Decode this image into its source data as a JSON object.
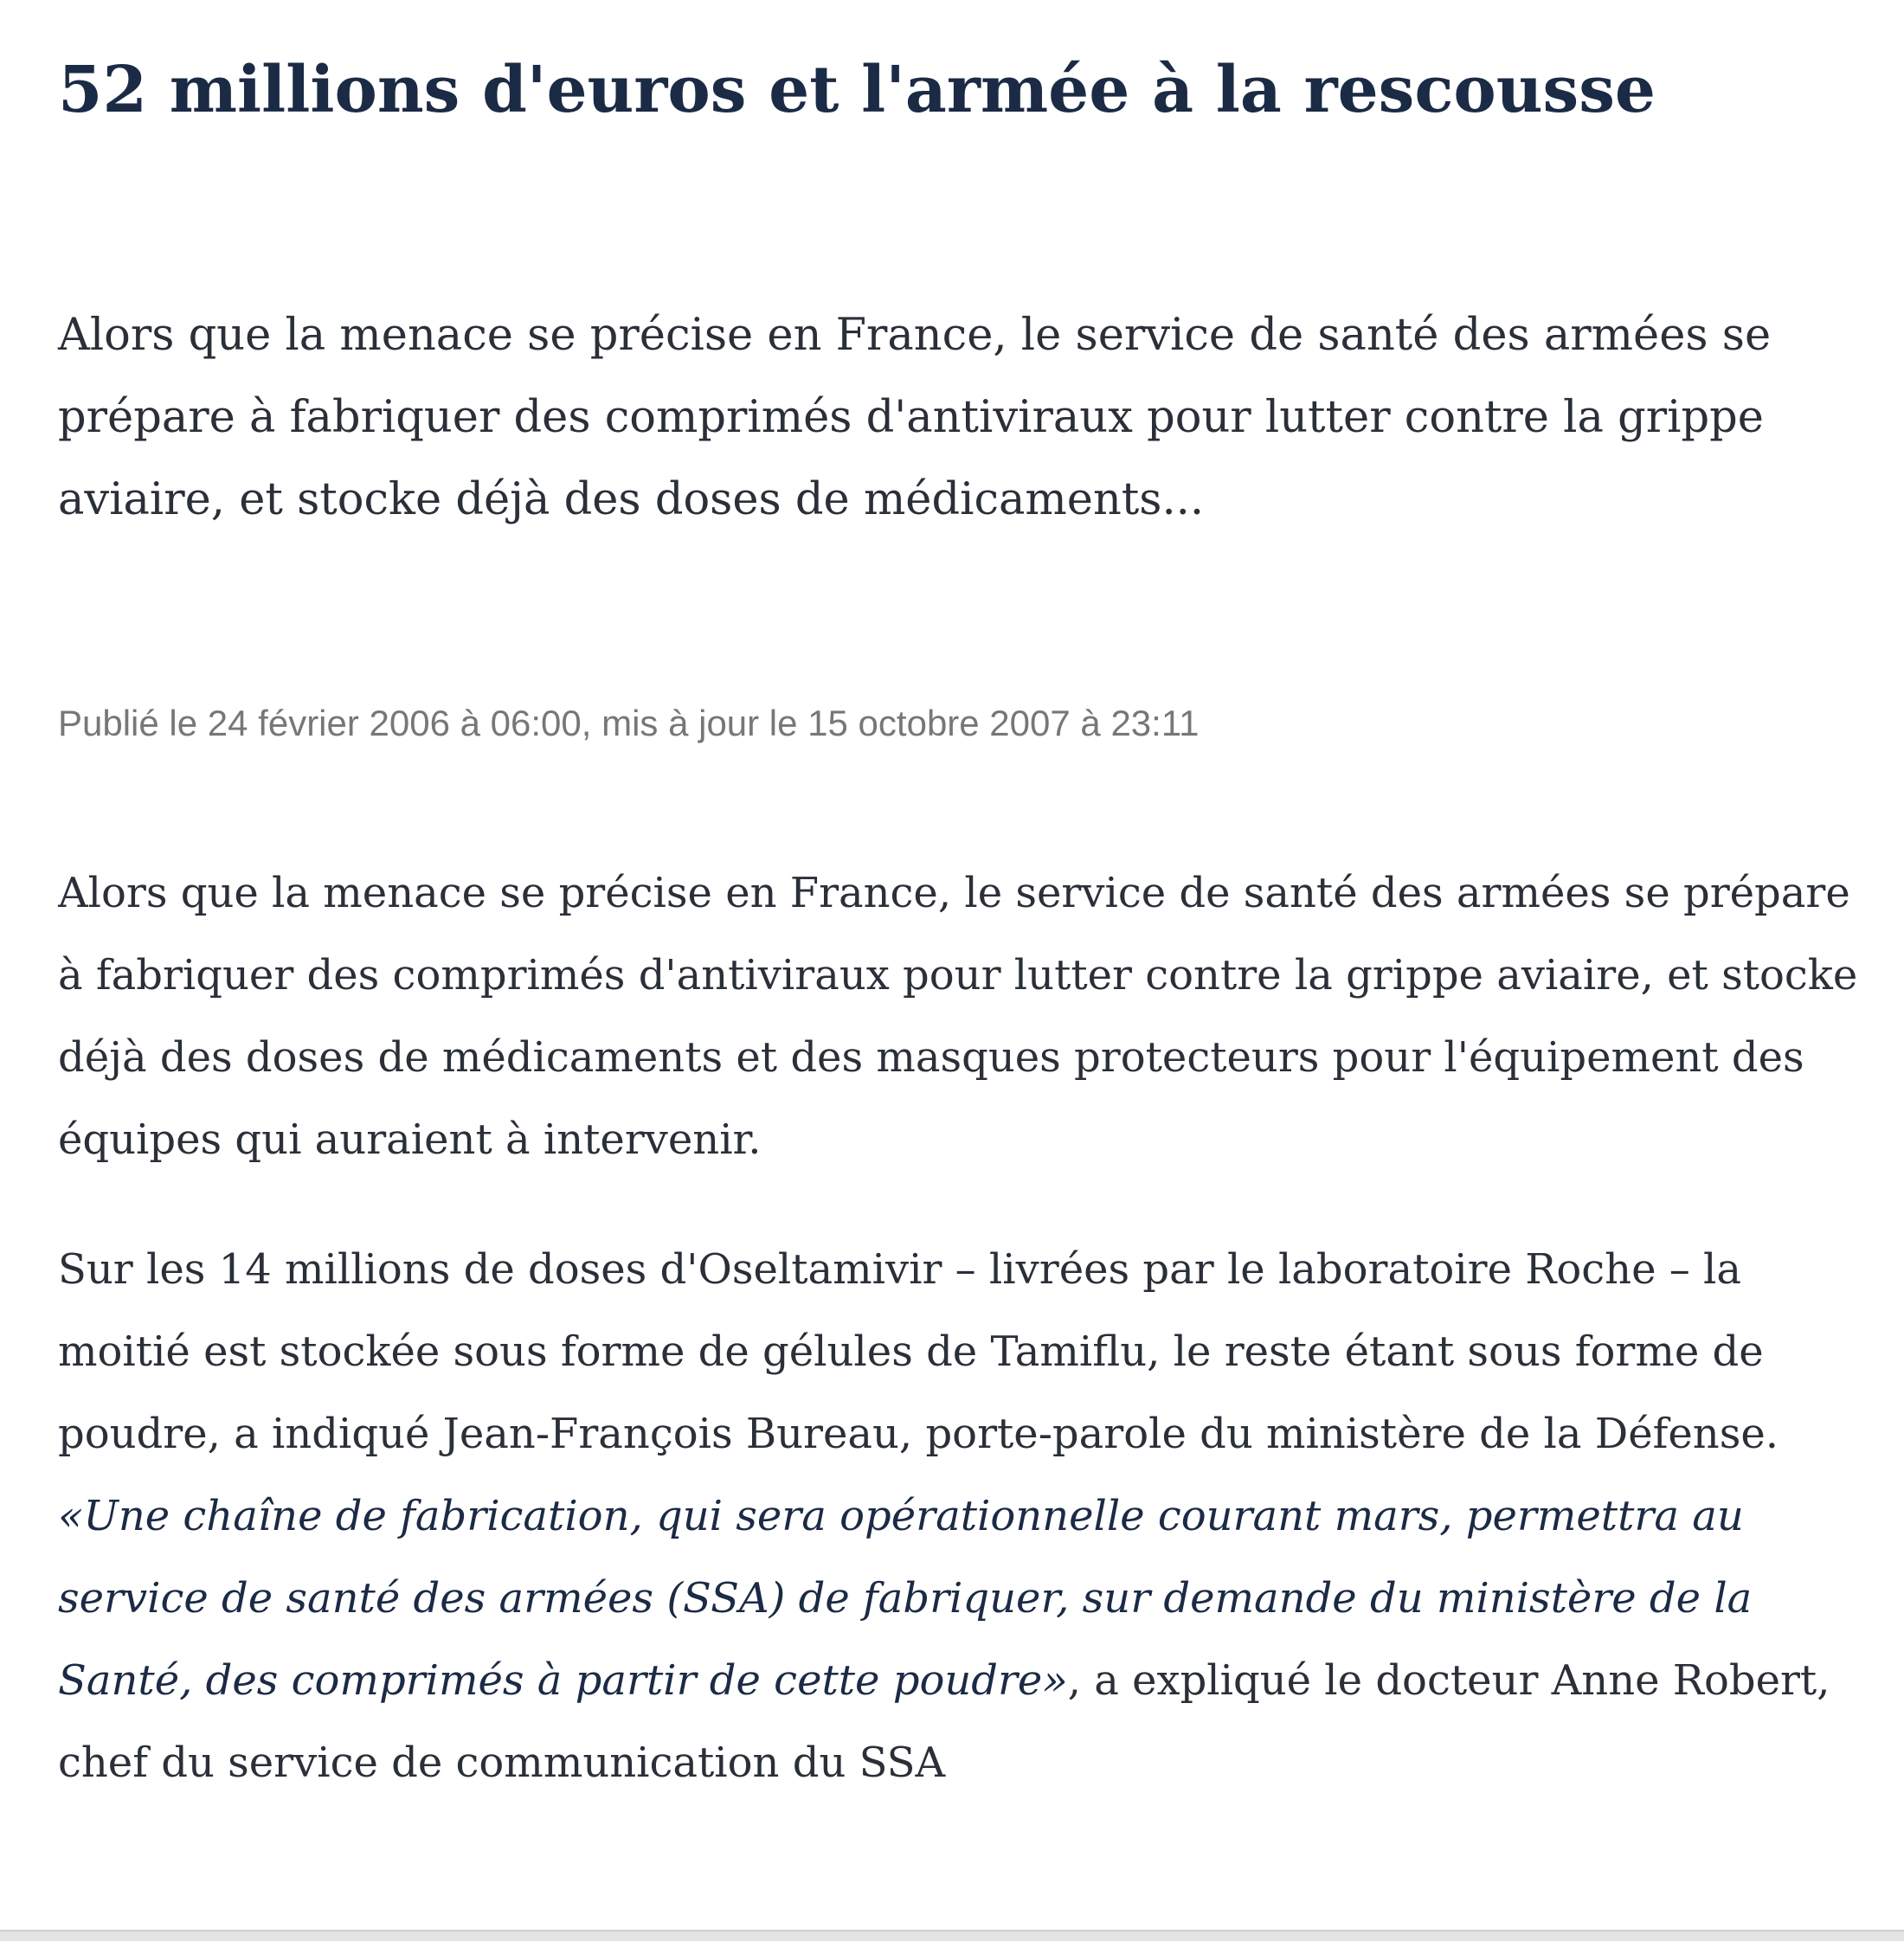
{
  "article": {
    "title": "52 millions d'euros et l'armée à la rescousse",
    "lead": "Alors que la menace se précise en France, le service de santé des armées se prépare à fabriquer des comprimés d'antiviraux pour lutter contre la grippe aviaire, et stocke déjà des doses de médicaments...",
    "meta": "Publié le 24 février 2006 à 06:00, mis à jour le 15 octobre 2007 à 23:11",
    "paragraphs": [
      {
        "text": "Alors que la menace se précise en France, le service de santé des armées se prépare à fabriquer des comprimés d'antiviraux pour lutter contre la grippe aviaire, et stocke déjà des doses de médicaments et des masques protecteurs pour l'équipement des équipes qui auraient à intervenir."
      },
      {
        "text_before": "Sur les 14 millions de doses d'Oseltamivir – livrées par le laboratoire Roche – la moitié est stockée sous forme de gélules de Tamiflu, le reste étant sous forme de poudre, a indiqué Jean-François Bureau, porte-parole du ministère de la Défense. ",
        "quote": "«Une chaîne de fabrication, qui sera opérationnelle courant mars, permettra au service de santé des armées (SSA) de fabriquer, sur demande du ministère de la Santé, des comprimés à partir de cette poudre»",
        "text_after": ", a expliqué le docteur Anne Robert, chef du service de communication du SSA"
      }
    ]
  }
}
